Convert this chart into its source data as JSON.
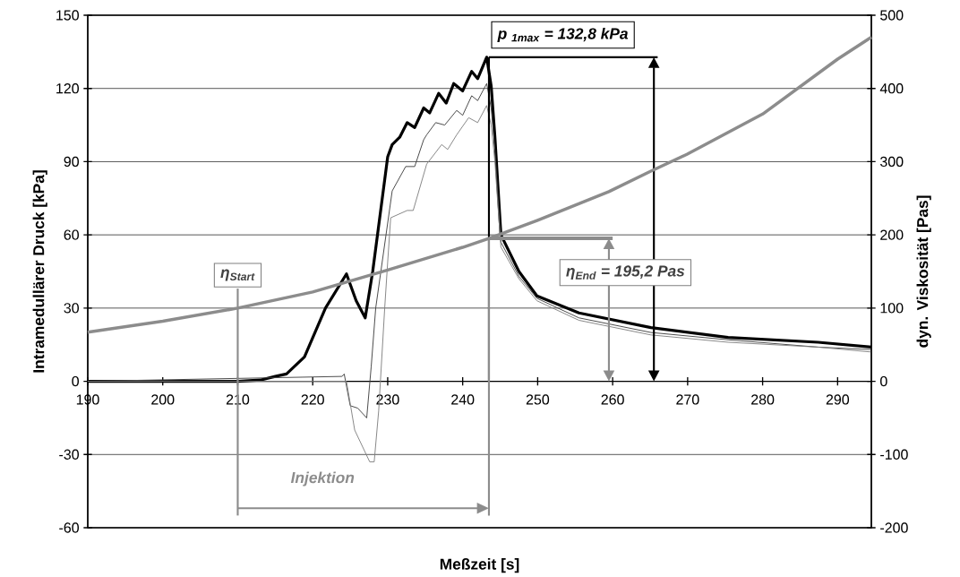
{
  "chart_data": {
    "type": "line",
    "xlabel": "Meßzeit [s]",
    "ylabel": "Intramedullärer Druck [kPa]",
    "y2label": "dyn. Viskosität [Pas]",
    "xlim": [
      190,
      294.5
    ],
    "xticks": [
      190,
      200,
      210,
      220,
      230,
      240,
      250,
      260,
      270,
      280,
      290
    ],
    "ylim": [
      -60,
      150
    ],
    "yticks": [
      -60,
      -30,
      0,
      30,
      60,
      90,
      120,
      150
    ],
    "y2lim": [
      -200,
      500
    ],
    "y2ticks": [
      -200,
      -100,
      0,
      100,
      200,
      300,
      400,
      500
    ],
    "grid": "y",
    "series": [
      {
        "color": "#000000",
        "x": [
          190,
          210,
          213,
          215,
          216.5,
          218.9,
          221.7,
          224.5,
          225.8,
          227.0,
          228.0,
          230.0,
          230.6,
          231.6,
          232.6,
          233.6,
          234.8,
          235.6,
          236.8,
          237.8,
          238.8,
          240.0,
          241.2,
          242.0,
          243.2,
          243.8,
          244.3,
          244.7,
          245.1,
          247.5,
          249.9,
          255.5,
          265.1,
          275.4,
          287.4,
          294.5
        ],
        "values": [
          0,
          0,
          0.5,
          2,
          3,
          10,
          30,
          44,
          33,
          26,
          45,
          92,
          97,
          100,
          106,
          104,
          112,
          110,
          118,
          114,
          122,
          119,
          127,
          124,
          132.8,
          121,
          100,
          80,
          60,
          45,
          35,
          28,
          22,
          18,
          16,
          14
        ]
      },
      {
        "color": "#404040",
        "x": [
          190,
          223.9,
          224.2,
          225,
          226,
          227.2,
          227.8,
          228.4,
          230.6,
          232.4,
          233.6,
          234.8,
          235.2,
          236.4,
          237.6,
          239.2,
          240,
          241.2,
          242,
          243.2,
          243.8,
          244.3,
          244.7,
          245.1,
          247.5,
          249.9,
          255.5,
          265.1,
          275.4,
          287.4,
          294.5
        ],
        "values": [
          0,
          2,
          3,
          -10,
          -11,
          -15,
          6,
          30,
          78,
          88,
          88,
          99,
          101,
          106,
          105,
          111,
          109,
          117,
          115,
          122,
          112,
          95,
          76,
          57,
          43,
          34,
          26,
          20,
          17,
          14,
          13
        ]
      },
      {
        "color": "#808080",
        "x": [
          190,
          224.5,
          225.6,
          227.6,
          228.2,
          228.8,
          229.6,
          230,
          230.4,
          232.6,
          233.4,
          235.2,
          237.2,
          238,
          239.2,
          240.8,
          242,
          243.2,
          243.8,
          244.3,
          244.7,
          245.1,
          247.5,
          249.9,
          255.5,
          265.1,
          275.4,
          287.4,
          294.5
        ],
        "values": [
          0,
          0,
          -20,
          -33,
          -33,
          -12,
          30,
          49,
          67,
          70,
          70,
          89,
          97,
          95,
          101,
          108,
          106,
          113,
          105,
          90,
          72,
          55,
          42,
          33,
          25,
          19,
          16,
          14,
          12
        ]
      },
      {
        "color": "#8c8c8c",
        "axis": "y2",
        "x": [
          190,
          200,
          210,
          220,
          230,
          240,
          243.5,
          250,
          259.5,
          265.1,
          269.9,
          280,
          290,
          294.5
        ],
        "values": [
          67,
          82,
          100,
          122,
          152,
          183,
          195,
          220,
          259,
          287,
          310,
          365,
          440,
          470
        ]
      }
    ],
    "ref_lines": [
      {
        "axis": "y",
        "value": 132.8,
        "label": "p $_{1max}$ = 132,8 kPa",
        "color": "#000000"
      },
      {
        "axis": "y2",
        "value": 195.2,
        "label": "η$_{End}$ = 195,2 Pas",
        "color": "#8c8c8c"
      },
      {
        "axis": "x",
        "value": 243.5,
        "color": "#000000"
      },
      {
        "axis": "x",
        "value": 243.5,
        "color": "#8c8c8c"
      },
      {
        "axis": "x",
        "value": 210,
        "label": "η$_{Start}$",
        "color": "#8c8c8c"
      }
    ],
    "annotations": [
      "Injektion"
    ]
  }
}
